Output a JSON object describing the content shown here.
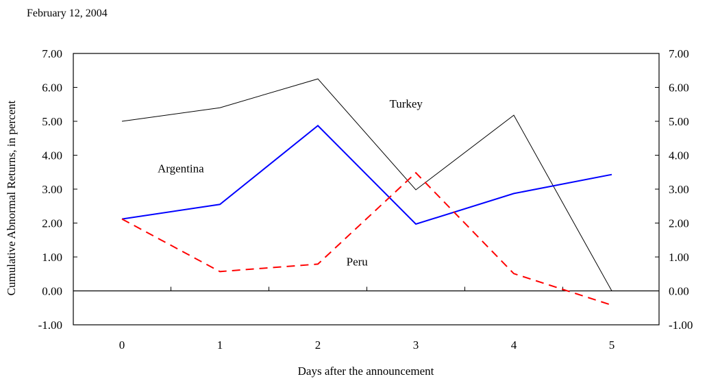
{
  "header": {
    "date": "February 12, 2004"
  },
  "chart_data": {
    "type": "line",
    "title": "",
    "xlabel": "Days after the announcement",
    "ylabel": "Cumulative Abnormal Returns, in percent",
    "x": [
      0,
      1,
      2,
      3,
      4,
      5
    ],
    "x_tick_labels": [
      "0",
      "1",
      "2",
      "3",
      "4",
      "5"
    ],
    "ylim": [
      -1,
      7
    ],
    "y_tick_labels": [
      "-1.00",
      "0.00",
      "1.00",
      "2.00",
      "3.00",
      "4.00",
      "5.00",
      "6.00",
      "7.00"
    ],
    "y_ticks": [
      -1,
      0,
      1,
      2,
      3,
      4,
      5,
      6,
      7
    ],
    "secondary_y_axis": true,
    "grid": false,
    "legend": "none (series labeled inline)",
    "series": [
      {
        "name": "Turkey",
        "values": [
          5.0,
          5.4,
          6.25,
          2.98,
          5.18,
          0.0
        ],
        "color": "#000000",
        "style": "solid",
        "label_anchor": {
          "x": 2.9,
          "y": 5.4
        }
      },
      {
        "name": "Argentina",
        "values": [
          2.12,
          2.55,
          4.87,
          1.97,
          2.87,
          3.43
        ],
        "color": "#0000ff",
        "style": "solid",
        "label_anchor": {
          "x": 0.6,
          "y": 3.5
        }
      },
      {
        "name": "Peru",
        "values": [
          2.12,
          0.57,
          0.79,
          3.48,
          0.51,
          -0.42
        ],
        "color": "#ff0000",
        "style": "dashed",
        "label_anchor": {
          "x": 2.4,
          "y": 0.75
        }
      }
    ]
  }
}
